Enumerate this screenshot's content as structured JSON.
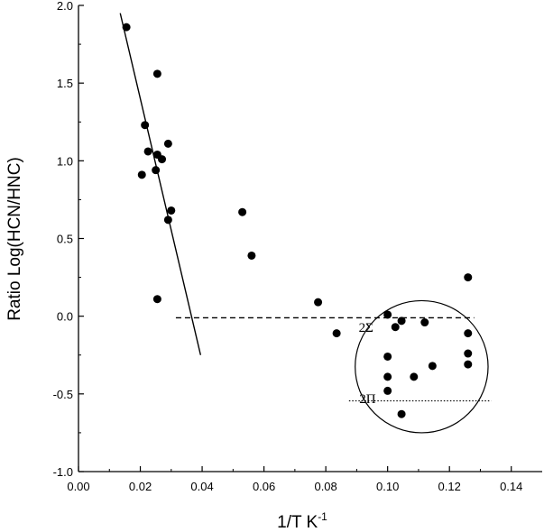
{
  "chart_data": {
    "type": "scatter",
    "xlabel": "1/T K",
    "xlabel_superscript": "-1",
    "ylabel": "Ratio Log(HCN/HNC)",
    "xlim": [
      0.0,
      0.15
    ],
    "ylim": [
      -1.0,
      2.0
    ],
    "x_ticks": [
      0.0,
      0.02,
      0.04,
      0.06,
      0.08,
      0.1,
      0.12,
      0.14
    ],
    "x_tick_labels": [
      "0.00",
      "0.02",
      "0.04",
      "0.06",
      "0.08",
      "0.10",
      "0.12",
      "0.14"
    ],
    "y_ticks": [
      -1.0,
      -0.5,
      0.0,
      0.5,
      1.0,
      1.5,
      2.0
    ],
    "y_tick_labels": [
      "-1.0",
      "-0.5",
      "0.0",
      "0.5",
      "1.0",
      "1.5",
      "2.0"
    ],
    "grid": false,
    "points": [
      {
        "x": 0.0155,
        "y": 1.86
      },
      {
        "x": 0.0255,
        "y": 1.56
      },
      {
        "x": 0.0215,
        "y": 1.23
      },
      {
        "x": 0.0225,
        "y": 1.06
      },
      {
        "x": 0.0255,
        "y": 1.04
      },
      {
        "x": 0.027,
        "y": 1.01
      },
      {
        "x": 0.029,
        "y": 1.11
      },
      {
        "x": 0.025,
        "y": 0.94
      },
      {
        "x": 0.0205,
        "y": 0.91
      },
      {
        "x": 0.03,
        "y": 0.68
      },
      {
        "x": 0.029,
        "y": 0.62
      },
      {
        "x": 0.0255,
        "y": 0.11
      },
      {
        "x": 0.053,
        "y": 0.67
      },
      {
        "x": 0.056,
        "y": 0.39
      },
      {
        "x": 0.0775,
        "y": 0.09
      },
      {
        "x": 0.0835,
        "y": -0.11
      },
      {
        "x": 0.1,
        "y": 0.01
      },
      {
        "x": 0.1025,
        "y": -0.07
      },
      {
        "x": 0.1045,
        "y": -0.03
      },
      {
        "x": 0.112,
        "y": -0.04
      },
      {
        "x": 0.126,
        "y": 0.25
      },
      {
        "x": 0.126,
        "y": -0.11
      },
      {
        "x": 0.126,
        "y": -0.24
      },
      {
        "x": 0.126,
        "y": -0.31
      },
      {
        "x": 0.1145,
        "y": -0.32
      },
      {
        "x": 0.1,
        "y": -0.26
      },
      {
        "x": 0.1,
        "y": -0.39
      },
      {
        "x": 0.1085,
        "y": -0.39
      },
      {
        "x": 0.1,
        "y": -0.48
      },
      {
        "x": 0.1045,
        "y": -0.63
      }
    ],
    "fit_line": {
      "x": [
        0.0135,
        0.0395
      ],
      "y": [
        1.95,
        -0.25
      ]
    },
    "dashed_line": {
      "x": [
        0.0315,
        0.128
      ],
      "y": [
        -0.01,
        -0.01
      ],
      "label": "2Σ",
      "label_at": [
        0.093,
        -0.1
      ]
    },
    "dotted_line": {
      "x": [
        0.0875,
        0.1335
      ],
      "y": [
        -0.545,
        -0.545
      ],
      "label": "2Π",
      "label_at": [
        0.0935,
        -0.56
      ]
    },
    "ellipse": {
      "cx": 0.111,
      "cy": -0.325,
      "rx": 0.0215,
      "ry": 0.425
    }
  }
}
